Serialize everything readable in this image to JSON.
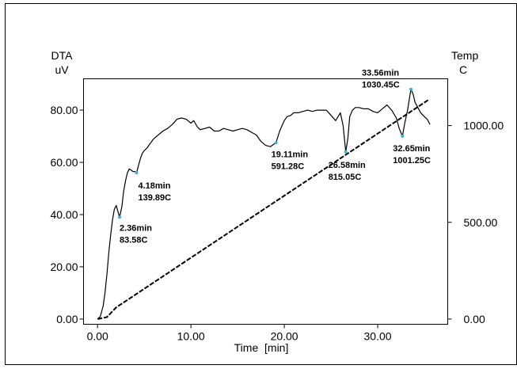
{
  "chart_data": {
    "type": "line",
    "title": "",
    "xlabel": "Time  [min]",
    "ylabel_left_line1": "DTA",
    "ylabel_left_line2": "uV",
    "ylabel_right_line1": "Temp",
    "ylabel_right_line2": "C",
    "xlim": [
      -1.5,
      37.5
    ],
    "ylim_left": [
      -2,
      92
    ],
    "ylim_right": [
      -27,
      1242
    ],
    "x_ticks": [
      0,
      10,
      20,
      30
    ],
    "x_tick_labels": [
      "0.00",
      "10.00",
      "20.00",
      "30.00"
    ],
    "y_left_ticks": [
      0,
      20,
      40,
      60,
      80
    ],
    "y_left_tick_labels": [
      "0.00",
      "20.00",
      "40.00",
      "60.00",
      "80.00"
    ],
    "y_right_ticks": [
      0,
      500,
      1000
    ],
    "y_right_tick_labels": [
      "0.00",
      "500.00",
      "1000.00"
    ],
    "grid": false,
    "colors": {
      "dta": "#000000",
      "temp": "#000000",
      "peak_marker": "#29b6e8"
    },
    "series": [
      {
        "axis": "left",
        "style": "solid",
        "x": [
          0.0,
          0.3,
          0.6,
          0.8,
          1.0,
          1.2,
          1.4,
          1.6,
          1.8,
          2.0,
          2.36,
          2.6,
          2.8,
          3.0,
          3.2,
          3.4,
          3.6,
          3.8,
          4.0,
          4.18,
          4.4,
          4.6,
          4.8,
          5.0,
          5.3,
          5.6,
          6.0,
          6.5,
          7.0,
          7.5,
          8.0,
          8.5,
          9.0,
          9.5,
          10.0,
          10.3,
          10.7,
          11.0,
          11.5,
          12.0,
          12.5,
          13.0,
          13.5,
          14.0,
          14.5,
          15.0,
          15.5,
          16.0,
          16.5,
          17.0,
          17.5,
          18.0,
          18.5,
          19.11,
          19.5,
          20.0,
          20.3,
          20.7,
          21.0,
          21.5,
          22.0,
          22.5,
          23.0,
          23.5,
          24.0,
          24.5,
          25.0,
          25.5,
          26.0,
          26.3,
          26.58,
          26.8,
          27.0,
          27.3,
          27.6,
          28.0,
          28.5,
          29.0,
          29.5,
          30.0,
          30.5,
          31.0,
          31.5,
          32.0,
          32.3,
          32.65,
          32.9,
          33.2,
          33.56,
          33.8,
          34.0,
          34.3,
          34.6,
          35.0,
          35.3,
          35.6
        ],
        "values": [
          0.0,
          1.0,
          5.0,
          10.0,
          17.0,
          25.0,
          32.0,
          38.0,
          42.0,
          43.5,
          39.0,
          43.0,
          49.0,
          53.0,
          56.0,
          57.5,
          57.0,
          56.5,
          56.5,
          56.0,
          59.0,
          61.5,
          63.5,
          64.5,
          65.5,
          67.0,
          69.0,
          70.5,
          72.0,
          73.0,
          74.5,
          76.5,
          77.0,
          76.5,
          75.0,
          76.0,
          73.5,
          72.5,
          73.0,
          73.5,
          72.0,
          72.0,
          73.0,
          72.5,
          72.0,
          72.5,
          73.0,
          72.5,
          71.5,
          70.5,
          68.0,
          66.5,
          66.0,
          67.5,
          72.0,
          76.0,
          77.5,
          78.0,
          79.0,
          79.0,
          79.5,
          80.0,
          79.5,
          80.0,
          80.0,
          80.0,
          78.0,
          76.0,
          79.0,
          74.0,
          64.0,
          69.0,
          77.5,
          80.0,
          81.0,
          81.0,
          80.5,
          80.5,
          79.5,
          79.0,
          80.5,
          82.0,
          80.0,
          77.0,
          73.0,
          70.0,
          75.0,
          80.0,
          88.0,
          86.0,
          83.0,
          81.0,
          79.0,
          77.5,
          76.5,
          74.5
        ]
      },
      {
        "axis": "right",
        "style": "dashed",
        "x": [
          0.0,
          1.0,
          2.0,
          35.5
        ],
        "values": [
          0.0,
          10.0,
          60.0,
          1135.0
        ]
      }
    ],
    "annotations": [
      {
        "time": "2.36min",
        "temp": "83.58C",
        "x": 2.36,
        "y": 39.0
      },
      {
        "time": "4.18min",
        "temp": "139.89C",
        "x": 4.18,
        "y": 56.0
      },
      {
        "time": "19.11min",
        "temp": "591.28C",
        "x": 19.11,
        "y": 67.5
      },
      {
        "time": "26.58min",
        "temp": "815.05C",
        "x": 26.58,
        "y": 64.0
      },
      {
        "time": "32.65min",
        "temp": "1001.25C",
        "x": 32.65,
        "y": 70.0
      },
      {
        "time": "33.56min",
        "temp": "1030.45C",
        "x": 33.56,
        "y": 88.0
      }
    ]
  }
}
